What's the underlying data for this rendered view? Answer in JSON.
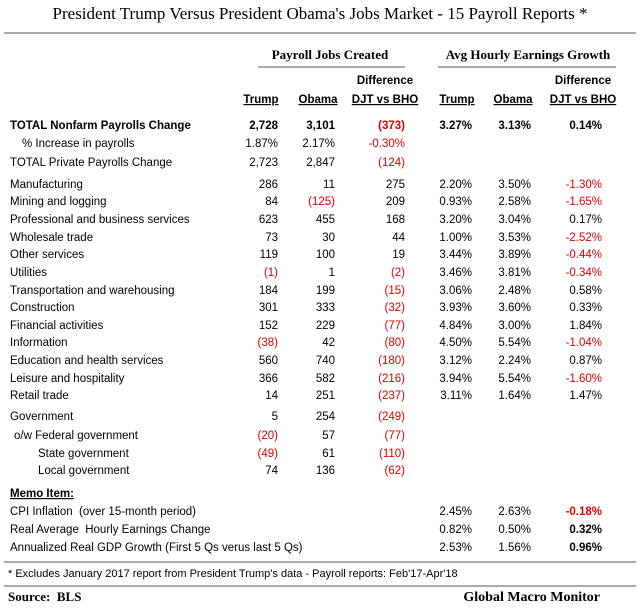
{
  "title": "President Trump Versus President Obama's Jobs Market - 15 Payroll Reports *",
  "group_headers": [
    "Payroll Jobs Created",
    "Avg Hourly Earnings Growth"
  ],
  "columns": [
    [
      "Trump"
    ],
    [
      "Obama"
    ],
    [
      "Difference",
      "DJT vs BHO"
    ],
    [
      "Trump"
    ],
    [
      "Obama"
    ],
    [
      "Difference",
      "DJT vs BHO"
    ]
  ],
  "rows": [
    {
      "label": "TOTAL Nonfarm Payrolls Change",
      "values": [
        "2,728",
        "3,101",
        "(373)",
        "3.27%",
        "3.13%",
        "0.14%"
      ]
    },
    {
      "label": "% Increase in payrolls",
      "values": [
        "1.87%",
        "2.17%",
        "-0.30%",
        null,
        null,
        null
      ]
    },
    {
      "label": "TOTAL Private Payrolls Change",
      "values": [
        "2,723",
        "2,847",
        "(124)",
        null,
        null,
        null
      ]
    },
    {
      "label": "Manufacturing",
      "values": [
        "286",
        "11",
        "275",
        "2.20%",
        "3.50%",
        "-1.30%"
      ]
    },
    {
      "label": "Mining and logging",
      "values": [
        "84",
        "(125)",
        "209",
        "0.93%",
        "2.58%",
        "-1.65%"
      ]
    },
    {
      "label": "Professional and business services",
      "values": [
        "623",
        "455",
        "168",
        "3.20%",
        "3.04%",
        "0.17%"
      ]
    },
    {
      "label": "Wholesale trade",
      "values": [
        "73",
        "30",
        "44",
        "1.00%",
        "3.53%",
        "-2.52%"
      ]
    },
    {
      "label": "Other services",
      "values": [
        "119",
        "100",
        "19",
        "3.44%",
        "3.89%",
        "-0.44%"
      ]
    },
    {
      "label": "Utilities",
      "values": [
        "(1)",
        "1",
        "(2)",
        "3.46%",
        "3.81%",
        "-0.34%"
      ]
    },
    {
      "label": "Transportation and warehousing",
      "values": [
        "184",
        "199",
        "(15)",
        "3.06%",
        "2.48%",
        "0.58%"
      ]
    },
    {
      "label": "Construction",
      "values": [
        "301",
        "333",
        "(32)",
        "3.93%",
        "3.60%",
        "0.33%"
      ]
    },
    {
      "label": "Financial activities",
      "values": [
        "152",
        "229",
        "(77)",
        "4.84%",
        "3.00%",
        "1.84%"
      ]
    },
    {
      "label": "Information",
      "values": [
        "(38)",
        "42",
        "(80)",
        "4.50%",
        "5.54%",
        "-1.04%"
      ]
    },
    {
      "label": "Education and health services",
      "values": [
        "560",
        "740",
        "(180)",
        "3.12%",
        "2.24%",
        "0.87%"
      ]
    },
    {
      "label": "Leisure and hospitality",
      "values": [
        "366",
        "582",
        "(216)",
        "3.94%",
        "5.54%",
        "-1.60%"
      ]
    },
    {
      "label": "Retail trade",
      "values": [
        "14",
        "251",
        "(237)",
        "3.11%",
        "1.64%",
        "1.47%"
      ]
    },
    {
      "label": "Government",
      "values": [
        "5",
        "254",
        "(249)",
        null,
        null,
        null
      ]
    },
    {
      "label": "o/w Federal government",
      "values": [
        "(20)",
        "57",
        "(77)",
        null,
        null,
        null
      ]
    },
    {
      "label": "State government",
      "values": [
        "(49)",
        "61",
        "(110)",
        null,
        null,
        null
      ]
    },
    {
      "label": "Local government",
      "values": [
        "74",
        "136",
        "(62)",
        null,
        null,
        null
      ]
    },
    {
      "label": "CPI Inflation  (over 15-month period)",
      "values": [
        null,
        null,
        null,
        "2.45%",
        "2.63%",
        "-0.18%"
      ]
    },
    {
      "label": "Real Average  Hourly Earnings Change",
      "values": [
        null,
        null,
        null,
        "0.82%",
        "0.50%",
        "0.32%"
      ]
    },
    {
      "label": "Annualized Real GDP Growth (First 5 Qs verus last 5 Qs)",
      "values": [
        null,
        null,
        null,
        "2.53%",
        "1.56%",
        "0.96%"
      ]
    }
  ],
  "memo_heading": "Memo Item:",
  "footnote": "* Excludes January 2017 report from President Trump's data - Payroll reports: Feb'17-Apr'18",
  "source": "Source:  BLS",
  "brand": "Global Macro Monitor"
}
